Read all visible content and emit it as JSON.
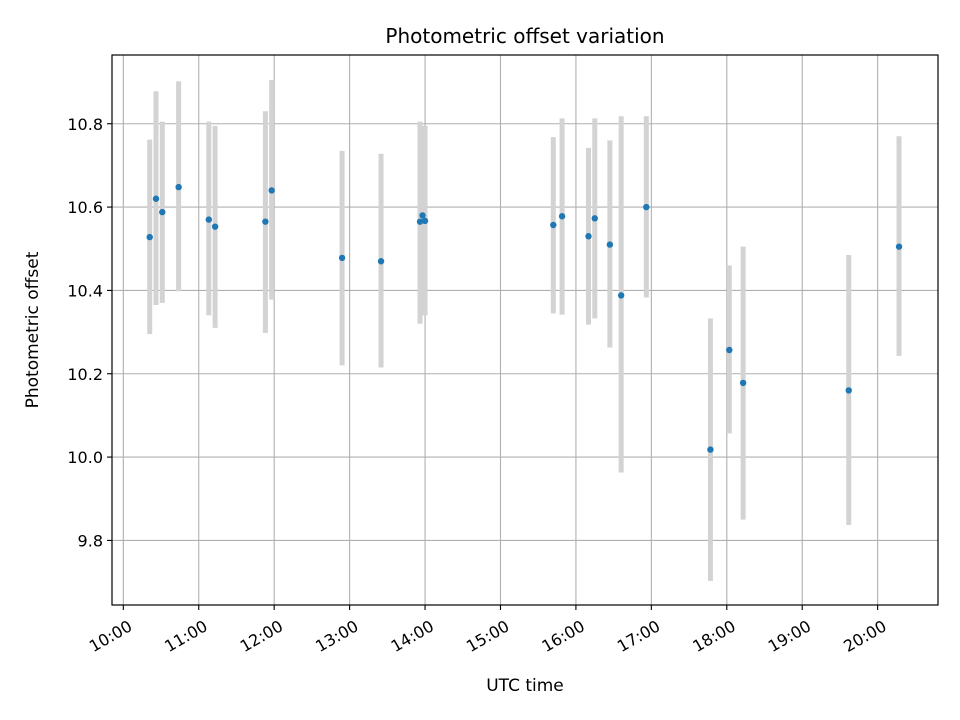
{
  "chart_data": {
    "type": "scatter",
    "title": "Photometric offset variation",
    "xlabel": "UTC time",
    "ylabel": "Photometric offset",
    "x_ticks": [
      "10:00",
      "11:00",
      "12:00",
      "13:00",
      "14:00",
      "15:00",
      "16:00",
      "17:00",
      "18:00",
      "19:00",
      "20:00"
    ],
    "y_ticks": [
      "9.8",
      "10.0",
      "10.2",
      "10.4",
      "10.6",
      "10.8"
    ],
    "xlim": [
      "09:51",
      "20:48"
    ],
    "ylim": [
      9.645,
      10.965
    ],
    "grid": true,
    "colors": {
      "points": "#1f77b4",
      "errorbars": "#d3d3d3",
      "grid": "#b0b0b0"
    },
    "points": [
      {
        "x": "10:21",
        "y": 10.528,
        "ylow": 10.295,
        "yhigh": 10.762
      },
      {
        "x": "10:26",
        "y": 10.62,
        "ylow": 10.365,
        "yhigh": 10.878
      },
      {
        "x": "10:31",
        "y": 10.588,
        "ylow": 10.37,
        "yhigh": 10.805
      },
      {
        "x": "10:44",
        "y": 10.648,
        "ylow": 10.398,
        "yhigh": 10.902
      },
      {
        "x": "11:08",
        "y": 10.57,
        "ylow": 10.34,
        "yhigh": 10.805
      },
      {
        "x": "11:13",
        "y": 10.553,
        "ylow": 10.31,
        "yhigh": 10.795
      },
      {
        "x": "11:53",
        "y": 10.565,
        "ylow": 10.298,
        "yhigh": 10.83
      },
      {
        "x": "11:58",
        "y": 10.64,
        "ylow": 10.378,
        "yhigh": 10.905
      },
      {
        "x": "12:54",
        "y": 10.478,
        "ylow": 10.22,
        "yhigh": 10.735
      },
      {
        "x": "13:25",
        "y": 10.47,
        "ylow": 10.215,
        "yhigh": 10.728
      },
      {
        "x": "13:56",
        "y": 10.565,
        "ylow": 10.32,
        "yhigh": 10.805
      },
      {
        "x": "13:58",
        "y": 10.58,
        "ylow": 10.34,
        "yhigh": 10.795
      },
      {
        "x": "14:00",
        "y": 10.567,
        "ylow": 10.34,
        "yhigh": 10.795
      },
      {
        "x": "15:42",
        "y": 10.557,
        "ylow": 10.345,
        "yhigh": 10.768
      },
      {
        "x": "15:49",
        "y": 10.578,
        "ylow": 10.342,
        "yhigh": 10.813
      },
      {
        "x": "16:10",
        "y": 10.53,
        "ylow": 10.318,
        "yhigh": 10.742
      },
      {
        "x": "16:15",
        "y": 10.573,
        "ylow": 10.333,
        "yhigh": 10.813
      },
      {
        "x": "16:27",
        "y": 10.51,
        "ylow": 10.263,
        "yhigh": 10.76
      },
      {
        "x": "16:36",
        "y": 10.388,
        "ylow": 9.963,
        "yhigh": 10.818
      },
      {
        "x": "16:56",
        "y": 10.6,
        "ylow": 10.383,
        "yhigh": 10.818
      },
      {
        "x": "17:47",
        "y": 10.018,
        "ylow": 9.703,
        "yhigh": 10.333
      },
      {
        "x": "18:02",
        "y": 10.257,
        "ylow": 10.057,
        "yhigh": 10.46
      },
      {
        "x": "18:13",
        "y": 10.178,
        "ylow": 9.85,
        "yhigh": 10.505
      },
      {
        "x": "19:37",
        "y": 10.16,
        "ylow": 9.837,
        "yhigh": 10.485
      },
      {
        "x": "20:17",
        "y": 10.505,
        "ylow": 10.243,
        "yhigh": 10.77
      }
    ]
  }
}
